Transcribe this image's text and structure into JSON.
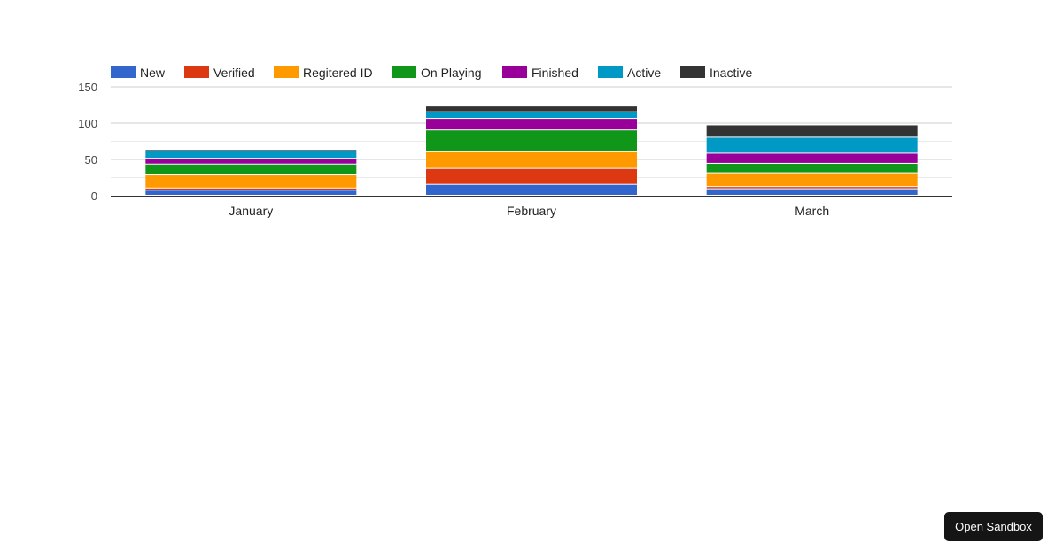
{
  "chart_data": {
    "type": "bar",
    "stacked": true,
    "categories": [
      "January",
      "February",
      "March"
    ],
    "series": [
      {
        "name": "New",
        "color": "#3366cc",
        "values": [
          7,
          15,
          9
        ]
      },
      {
        "name": "Verified",
        "color": "#dc3912",
        "values": [
          3,
          22,
          3
        ]
      },
      {
        "name": "Regitered ID",
        "color": "#ff9900",
        "values": [
          18,
          23,
          19
        ]
      },
      {
        "name": "On Playing",
        "color": "#109618",
        "values": [
          15,
          30,
          13
        ]
      },
      {
        "name": "Finished",
        "color": "#990099",
        "values": [
          8,
          16,
          14
        ]
      },
      {
        "name": "Active",
        "color": "#0099c6",
        "values": [
          11,
          9,
          22
        ]
      },
      {
        "name": "Inactive",
        "color": "#333333",
        "values": [
          1,
          8,
          17
        ]
      }
    ],
    "ylim": [
      0,
      150
    ],
    "yticks": [
      0,
      50,
      100,
      150
    ],
    "grid": true,
    "legend_position": "top"
  },
  "sandbox_button": {
    "label": "Open Sandbox"
  }
}
